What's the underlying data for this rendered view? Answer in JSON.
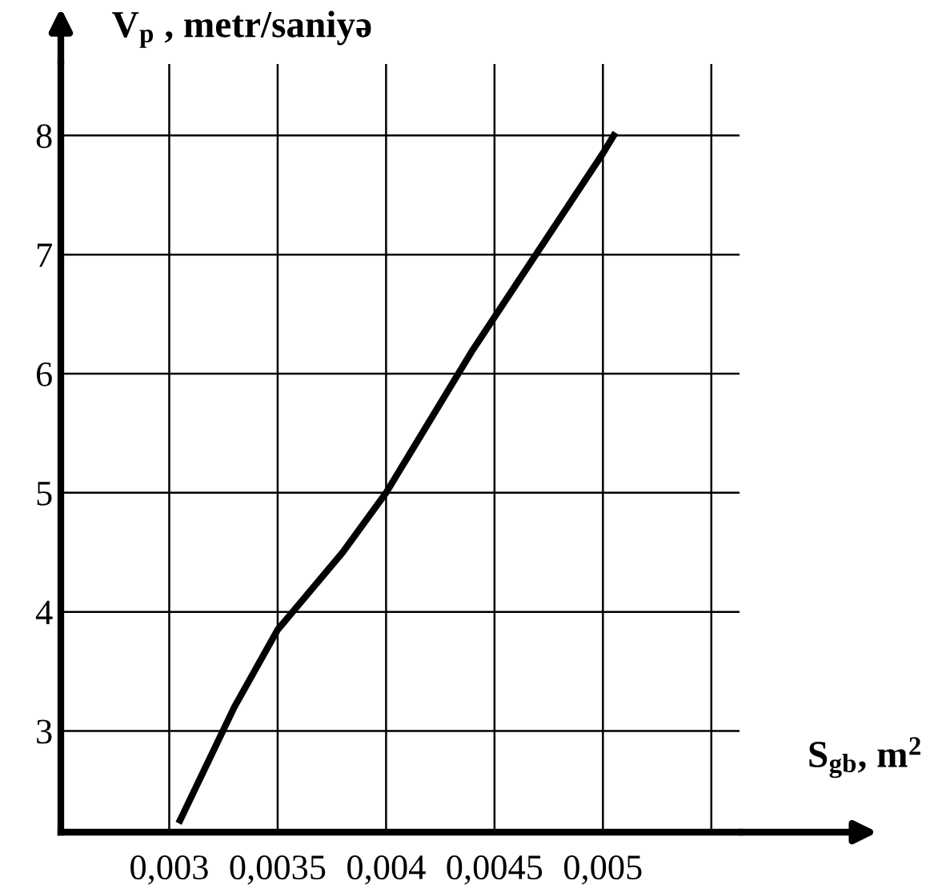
{
  "chart_data": {
    "type": "line",
    "xlabel": "S$_{gb}$, m$^{2}$",
    "ylabel": "V$_{p}$ , metr/saniyə",
    "x": [
      0.00305,
      0.0033,
      0.0035,
      0.0038,
      0.004,
      0.0042,
      0.0044,
      0.0046,
      0.0048,
      0.005,
      0.00505
    ],
    "series": [
      {
        "color": "#000000",
        "values": [
          2.25,
          3.2,
          3.85,
          4.5,
          5.0,
          5.6,
          6.2,
          6.75,
          7.3,
          7.85,
          8.0
        ]
      }
    ],
    "xlim": [
      0.0025,
      0.00563
    ],
    "ylim": [
      2.15,
      8.6
    ],
    "xticks": [
      {
        "value": 0.003,
        "label": "0,003"
      },
      {
        "value": 0.0035,
        "label": "0,0035"
      },
      {
        "value": 0.004,
        "label": "0,004"
      },
      {
        "value": 0.0045,
        "label": "0,0045"
      },
      {
        "value": 0.005,
        "label": "0,005"
      },
      {
        "value": 0.0055,
        "label": null
      }
    ],
    "yticks": [
      3,
      4,
      5,
      6,
      7,
      8
    ],
    "grid": true,
    "marker": "none",
    "line_style": "solid"
  }
}
